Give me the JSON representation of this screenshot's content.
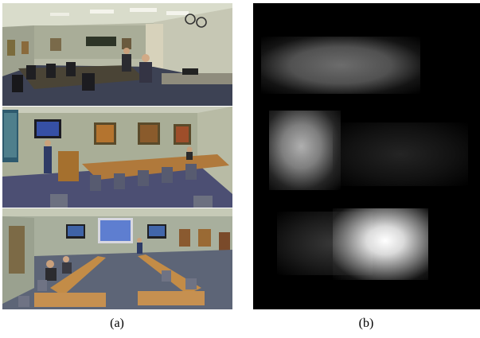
{
  "figure": {
    "captions": {
      "a": "(a)",
      "b": "(b)"
    }
  }
}
